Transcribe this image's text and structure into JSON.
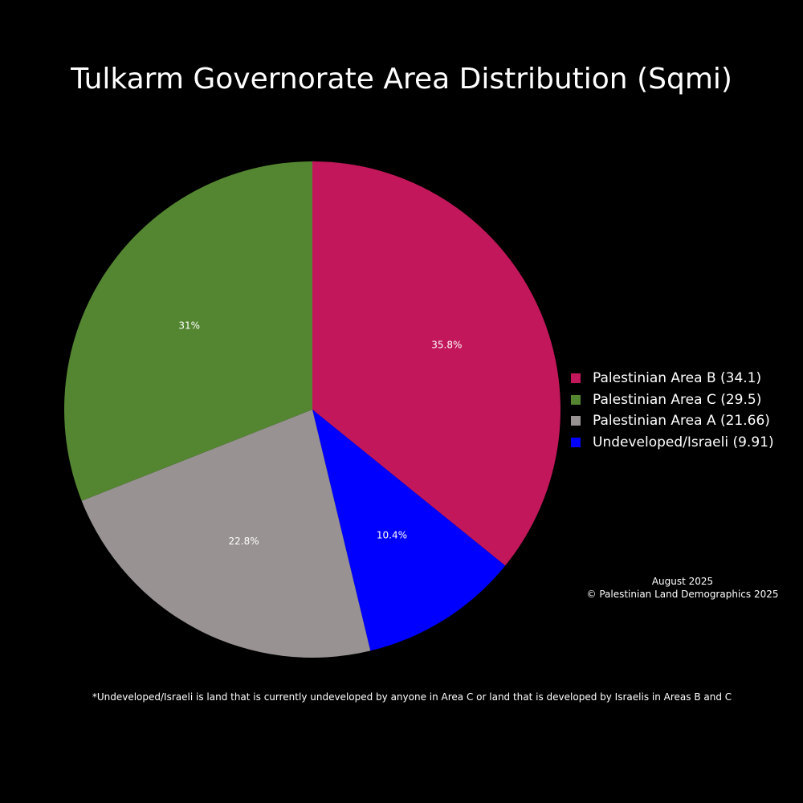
{
  "chart_data": {
    "type": "pie",
    "title": "Tulkarm Governorate Area Distribution (Sqmi)",
    "slices": [
      {
        "label": "Palestinian Area B",
        "value": 34.1,
        "percent_label": "35.8%",
        "color": "#c2185b",
        "legend": "Palestinian Area B (34.1)"
      },
      {
        "label": "Undeveloped/Israeli",
        "value": 9.91,
        "percent_label": "10.4%",
        "color": "#0000ff",
        "legend": "Undeveloped/Israeli (9.91)"
      },
      {
        "label": "Palestinian Area A",
        "value": 21.66,
        "percent_label": "22.8%",
        "color": "#989392",
        "legend": "Palestinian Area A (21.66)"
      },
      {
        "label": "Palestinian Area C",
        "value": 29.5,
        "percent_label": "31%",
        "color": "#548631",
        "legend": "Palestinian Area C (29.5)"
      }
    ],
    "legend_order": [
      0,
      3,
      2,
      1
    ],
    "legend_position": "right",
    "start": "12 o'clock",
    "direction": "clockwise"
  },
  "credit": {
    "date": "August 2025",
    "copyright": "© Palestinian Land Demographics 2025"
  },
  "footnote": "*Undeveloped/Israeli is land that is currently undeveloped by anyone in Area C or land that is developed by Israelis in Areas B and C",
  "background_color": "#000000"
}
